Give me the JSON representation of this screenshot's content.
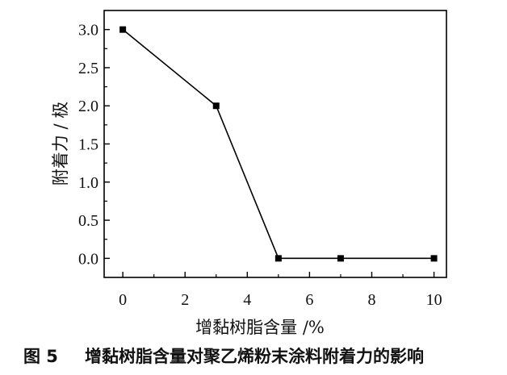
{
  "chart_data": {
    "type": "line",
    "xlabel": "增黏树脂含量 /%",
    "ylabel": "附着力 / 极",
    "xlim": [
      -0.6,
      10.4
    ],
    "ylim": [
      -0.25,
      3.25
    ],
    "x_ticks": [
      0,
      2,
      4,
      6,
      8,
      10
    ],
    "x_tick_labels": [
      "0",
      "2",
      "4",
      "6",
      "8",
      "10"
    ],
    "y_ticks": [
      0.0,
      0.5,
      1.0,
      1.5,
      2.0,
      2.5,
      3.0
    ],
    "y_tick_labels": [
      "0.0",
      "0.5",
      "1.0",
      "1.5",
      "2.0",
      "2.5",
      "3.0"
    ],
    "grid": false,
    "series": [
      {
        "x": [
          0,
          3,
          5,
          7,
          10
        ],
        "y": [
          3.0,
          2.0,
          0.0,
          0.0,
          0.0
        ]
      }
    ]
  },
  "caption": {
    "figure_label": "图 5",
    "text": "增黏树脂含量对聚乙烯粉末涂料附着力的影响"
  }
}
